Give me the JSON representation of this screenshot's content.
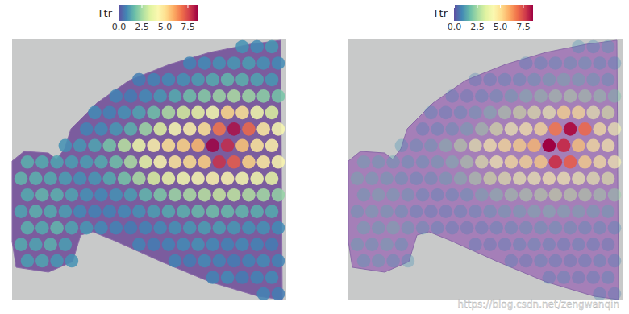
{
  "chart_data": [
    {
      "type": "heatmap",
      "tick_labels": false,
      "colorbar": {
        "title": "Ttr",
        "range": [
          0,
          8.6
        ],
        "ticks": [
          {
            "value": 0,
            "label": "0.0"
          },
          {
            "value": 2.5,
            "label": "2.5"
          },
          {
            "value": 5,
            "label": "5.0"
          },
          {
            "value": 7.5,
            "label": "7.5"
          }
        ]
      },
      "cells": [
        [
          null,
          null,
          null,
          null,
          null,
          null,
          null,
          null,
          null,
          null,
          null,
          null,
          null,
          null,
          null,
          1.0,
          0.9,
          1.1
        ],
        [
          null,
          null,
          null,
          null,
          null,
          null,
          null,
          null,
          null,
          null,
          null,
          0.8,
          0.9,
          1.0,
          1.1,
          1.2,
          1.0,
          0.9
        ],
        [
          null,
          null,
          null,
          null,
          null,
          null,
          null,
          null,
          0.7,
          0.8,
          0.9,
          1.0,
          1.2,
          1.4,
          1.6,
          1.5,
          1.3,
          1.1
        ],
        [
          null,
          null,
          null,
          null,
          null,
          null,
          0.8,
          0.7,
          0.9,
          1.1,
          1.4,
          1.8,
          2.1,
          2.4,
          2.6,
          2.4,
          2.2,
          1.9
        ],
        [
          null,
          null,
          null,
          null,
          null,
          0.9,
          0.8,
          1.0,
          1.3,
          1.8,
          2.6,
          3.2,
          3.6,
          4.0,
          5.2,
          5.0,
          3.9,
          3.4
        ],
        [
          null,
          null,
          null,
          null,
          0.8,
          0.9,
          1.1,
          1.5,
          2.4,
          3.4,
          4.2,
          4.6,
          5.0,
          6.8,
          8.4,
          7.0,
          4.8,
          4.2
        ],
        [
          null,
          null,
          null,
          1.0,
          1.1,
          1.3,
          1.9,
          2.8,
          3.8,
          4.6,
          5.0,
          5.3,
          5.8,
          8.6,
          8.0,
          5.6,
          4.9,
          4.6
        ],
        [
          1.5,
          1.4,
          1.3,
          1.2,
          1.2,
          1.4,
          1.8,
          2.6,
          3.6,
          4.4,
          4.9,
          5.1,
          5.4,
          7.9,
          7.2,
          5.3,
          4.8,
          4.4
        ],
        [
          1.6,
          1.5,
          1.4,
          1.2,
          1.0,
          1.1,
          1.4,
          1.9,
          2.6,
          3.3,
          3.7,
          4.0,
          4.2,
          4.5,
          4.4,
          4.1,
          3.9,
          3.6
        ],
        [
          1.4,
          1.6,
          1.5,
          1.3,
          1.0,
          0.9,
          1.0,
          1.2,
          1.6,
          2.0,
          2.4,
          2.6,
          2.8,
          3.0,
          2.9,
          2.7,
          2.5,
          2.3
        ],
        [
          1.3,
          1.5,
          1.4,
          1.2,
          0.9,
          0.8,
          0.8,
          0.9,
          1.0,
          1.2,
          1.4,
          1.5,
          1.7,
          1.8,
          1.7,
          1.6,
          1.5,
          1.4
        ],
        [
          1.5,
          1.4,
          1.6,
          1.3,
          1.1,
          0.9,
          0.8,
          0.7,
          0.8,
          0.9,
          1.0,
          1.1,
          1.2,
          1.2,
          1.1,
          1.0,
          1.0,
          0.9
        ],
        [
          1.4,
          1.3,
          1.5,
          1.2,
          null,
          null,
          null,
          null,
          0.8,
          0.7,
          0.8,
          0.9,
          1.0,
          0.9,
          0.8,
          0.9,
          0.8,
          0.7
        ],
        [
          1.2,
          1.3,
          1.1,
          1.0,
          null,
          null,
          null,
          null,
          null,
          null,
          0.8,
          0.7,
          0.9,
          0.8,
          0.7,
          0.8,
          0.9,
          0.8
        ],
        [
          null,
          null,
          null,
          null,
          null,
          null,
          null,
          null,
          null,
          null,
          null,
          null,
          null,
          0.8,
          0.9,
          0.7,
          0.8,
          0.9
        ],
        [
          null,
          null,
          null,
          null,
          null,
          null,
          null,
          null,
          null,
          null,
          null,
          null,
          null,
          null,
          null,
          null,
          0.8,
          0.7
        ]
      ]
    },
    {
      "type": "heatmap",
      "tick_labels": false,
      "colorbar": {
        "title": "Ttr",
        "range": [
          0,
          8.6
        ],
        "ticks": [
          {
            "value": 0,
            "label": "0.0"
          },
          {
            "value": 2.5,
            "label": "2.5"
          },
          {
            "value": 5,
            "label": "5.0"
          },
          {
            "value": 7.5,
            "label": "7.5"
          }
        ]
      },
      "annotations": [
        "https://blog.csdn.net/zengwanqin"
      ],
      "cells": [
        [
          null,
          null,
          null,
          null,
          null,
          null,
          null,
          null,
          null,
          null,
          null,
          null,
          null,
          null,
          null,
          1.0,
          0.9,
          1.1
        ],
        [
          null,
          null,
          null,
          null,
          null,
          null,
          null,
          null,
          null,
          null,
          null,
          0.8,
          0.9,
          1.0,
          1.1,
          1.2,
          1.0,
          0.9
        ],
        [
          null,
          null,
          null,
          null,
          null,
          null,
          null,
          null,
          0.7,
          0.8,
          0.9,
          1.0,
          1.2,
          1.4,
          1.6,
          1.5,
          1.3,
          1.1
        ],
        [
          null,
          null,
          null,
          null,
          null,
          null,
          0.8,
          0.7,
          0.9,
          1.1,
          1.4,
          1.8,
          2.1,
          2.4,
          2.6,
          2.4,
          2.2,
          1.9
        ],
        [
          null,
          null,
          null,
          null,
          null,
          0.9,
          0.8,
          1.0,
          1.3,
          1.8,
          2.6,
          3.2,
          3.6,
          4.0,
          5.2,
          5.0,
          3.9,
          3.4
        ],
        [
          null,
          null,
          null,
          null,
          0.8,
          0.9,
          1.1,
          1.5,
          2.4,
          3.4,
          4.2,
          4.6,
          5.0,
          6.8,
          8.4,
          7.0,
          4.8,
          4.2
        ],
        [
          null,
          null,
          null,
          1.0,
          1.1,
          1.3,
          1.9,
          2.8,
          3.8,
          4.6,
          5.0,
          5.3,
          5.8,
          8.6,
          8.0,
          5.6,
          4.9,
          4.6
        ],
        [
          1.5,
          1.4,
          1.3,
          1.2,
          1.2,
          1.4,
          1.8,
          2.6,
          3.6,
          4.4,
          4.9,
          5.1,
          5.4,
          7.9,
          7.2,
          5.3,
          4.8,
          4.4
        ],
        [
          1.6,
          1.5,
          1.4,
          1.2,
          1.0,
          1.1,
          1.4,
          1.9,
          2.6,
          3.3,
          3.7,
          4.0,
          4.2,
          4.5,
          4.4,
          4.1,
          3.9,
          3.6
        ],
        [
          1.4,
          1.6,
          1.5,
          1.3,
          1.0,
          0.9,
          1.0,
          1.2,
          1.6,
          2.0,
          2.4,
          2.6,
          2.8,
          3.0,
          2.9,
          2.7,
          2.5,
          2.3
        ],
        [
          1.3,
          1.5,
          1.4,
          1.2,
          0.9,
          0.8,
          0.8,
          0.9,
          1.0,
          1.2,
          1.4,
          1.5,
          1.7,
          1.8,
          1.7,
          1.6,
          1.5,
          1.4
        ],
        [
          1.5,
          1.4,
          1.6,
          1.3,
          1.1,
          0.9,
          0.8,
          0.7,
          0.8,
          0.9,
          1.0,
          1.1,
          1.2,
          1.2,
          1.1,
          1.0,
          1.0,
          0.9
        ],
        [
          1.4,
          1.3,
          1.5,
          1.2,
          null,
          null,
          null,
          null,
          0.8,
          0.7,
          0.8,
          0.9,
          1.0,
          0.9,
          0.8,
          0.9,
          0.8,
          0.7
        ],
        [
          1.2,
          1.3,
          1.1,
          1.0,
          null,
          null,
          null,
          null,
          null,
          null,
          0.8,
          0.7,
          0.9,
          0.8,
          0.7,
          0.8,
          0.9,
          0.8
        ],
        [
          null,
          null,
          null,
          null,
          null,
          null,
          null,
          null,
          null,
          null,
          null,
          null,
          null,
          0.8,
          0.9,
          0.7,
          0.8,
          0.9
        ],
        [
          null,
          null,
          null,
          null,
          null,
          null,
          null,
          null,
          null,
          null,
          null,
          null,
          null,
          null,
          null,
          null,
          0.8,
          0.7
        ]
      ]
    }
  ]
}
